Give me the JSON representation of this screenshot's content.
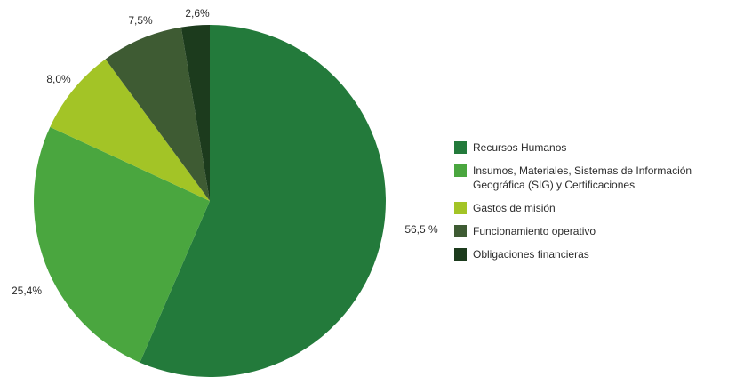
{
  "chart_data": {
    "type": "pie",
    "title": "",
    "slices": [
      {
        "name": "Recursos Humanos",
        "value": 56.5,
        "label": "56,5 %",
        "color": "#237a3b"
      },
      {
        "name": "Insumos, Materiales, Sistemas de Información\nGeográfica (SIG) y Certificaciones",
        "value": 25.4,
        "label": "25,4%",
        "color": "#4aa63f"
      },
      {
        "name": "Gastos de misión",
        "value": 8.0,
        "label": "8,0%",
        "color": "#a3c426"
      },
      {
        "name": "Funcionamiento operativo",
        "value": 7.5,
        "label": "7,5%",
        "color": "#3e5b33"
      },
      {
        "name": "Obligaciones financieras",
        "value": 2.6,
        "label": "2,6%",
        "color": "#1c3b1d"
      }
    ],
    "legend_position": "right",
    "start_angle": "12 o'clock",
    "direction": "clockwise"
  }
}
